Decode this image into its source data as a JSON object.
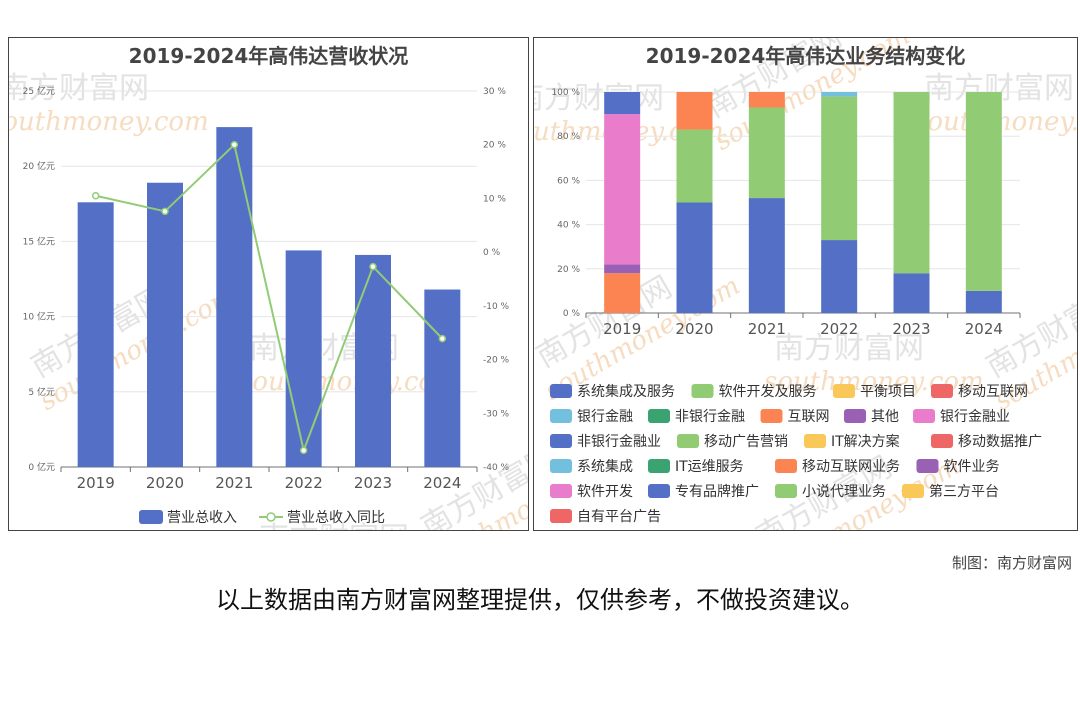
{
  "chart_data": [
    {
      "type": "bar+line",
      "title": "2019-2024年高伟达营收状况",
      "categories": [
        "2019",
        "2020",
        "2021",
        "2022",
        "2023",
        "2024"
      ],
      "y_left": {
        "ticks": [
          "0 亿元",
          "5 亿元",
          "10 亿元",
          "15 亿元",
          "20 亿元",
          "25 亿元"
        ],
        "ylim": [
          0,
          25
        ]
      },
      "y_right": {
        "ticks": [
          "-40 %",
          "-30 %",
          "-20 %",
          "-10 %",
          "0 %",
          "10 %",
          "20 %",
          "30 %"
        ],
        "ylim": [
          -40,
          30
        ]
      },
      "series": [
        {
          "name": "营业总收入",
          "type": "bar",
          "color": "#5470c6",
          "values": [
            17.6,
            18.9,
            22.6,
            14.4,
            14.1,
            11.8
          ]
        },
        {
          "name": "营业总收入同比",
          "type": "line",
          "color": "#91cc75",
          "values": [
            10.5,
            7.6,
            20.0,
            -36.9,
            -2.7,
            -16.1
          ]
        }
      ]
    },
    {
      "type": "stacked-bar",
      "title": "2019-2024年高伟达业务结构变化",
      "categories": [
        "2019",
        "2020",
        "2021",
        "2022",
        "2023",
        "2024"
      ],
      "y_ticks": [
        "0 %",
        "20 %",
        "40 %",
        "60 %",
        "80 %",
        "100 %"
      ],
      "ylim": [
        0,
        100
      ],
      "legend": [
        {
          "name": "系统集成及服务",
          "color": "#5470c6"
        },
        {
          "name": "软件开发及服务",
          "color": "#91cc75"
        },
        {
          "name": "平衡项目",
          "color": "#fac858"
        },
        {
          "name": "移动互联网",
          "color": "#ee6666"
        },
        {
          "name": "银行金融",
          "color": "#73c0de"
        },
        {
          "name": "非银行金融",
          "color": "#3ba272"
        },
        {
          "name": "互联网",
          "color": "#fc8452"
        },
        {
          "name": "其他",
          "color": "#9a60b4"
        },
        {
          "name": "银行金融业",
          "color": "#ea7ccc"
        },
        {
          "name": "非银行金融业",
          "color": "#5470c6"
        },
        {
          "name": "移动广告营销",
          "color": "#91cc75"
        },
        {
          "name": "IT解决方案",
          "color": "#fac858"
        },
        {
          "name": "移动数据推广",
          "color": "#ee6666"
        },
        {
          "name": "系统集成",
          "color": "#73c0de"
        },
        {
          "name": "IT运维服务",
          "color": "#3ba272"
        },
        {
          "name": "移动互联网业务",
          "color": "#fc8452"
        },
        {
          "name": "软件业务",
          "color": "#9a60b4"
        },
        {
          "name": "软件开发",
          "color": "#ea7ccc"
        },
        {
          "name": "专有品牌推广",
          "color": "#5470c6"
        },
        {
          "name": "小说代理业务",
          "color": "#91cc75"
        },
        {
          "name": "第三方平台",
          "color": "#fac858"
        },
        {
          "name": "自有平台广告",
          "color": "#ee6666"
        }
      ],
      "stacks": [
        [
          {
            "name": "互联网",
            "color": "#fc8452",
            "value": 18
          },
          {
            "name": "其他",
            "color": "#9a60b4",
            "value": 4
          },
          {
            "name": "银行金融业",
            "color": "#ea7ccc",
            "value": 68
          },
          {
            "name": "非银行金融业",
            "color": "#5470c6",
            "value": 10
          }
        ],
        [
          {
            "name": "系统集成及服务",
            "color": "#5470c6",
            "value": 50
          },
          {
            "name": "软件开发及服务",
            "color": "#91cc75",
            "value": 33
          },
          {
            "name": "互联网",
            "color": "#fc8452",
            "value": 17
          }
        ],
        [
          {
            "name": "系统集成及服务",
            "color": "#5470c6",
            "value": 52
          },
          {
            "name": "软件开发及服务",
            "color": "#91cc75",
            "value": 41
          },
          {
            "name": "互联网",
            "color": "#fc8452",
            "value": 7
          }
        ],
        [
          {
            "name": "系统集成及服务",
            "color": "#5470c6",
            "value": 33
          },
          {
            "name": "软件开发及服务",
            "color": "#91cc75",
            "value": 65
          },
          {
            "name": "银行金融",
            "color": "#73c0de",
            "value": 2
          }
        ],
        [
          {
            "name": "系统集成及服务",
            "color": "#5470c6",
            "value": 18
          },
          {
            "name": "软件开发及服务",
            "color": "#91cc75",
            "value": 82
          }
        ],
        [
          {
            "name": "系统集成及服务",
            "color": "#5470c6",
            "value": 10
          },
          {
            "name": "软件开发及服务",
            "color": "#91cc75",
            "value": 90
          }
        ]
      ]
    }
  ],
  "watermark": {
    "brand": "南方财富网",
    "latin": "southmoney.com"
  },
  "credit": "制图：南方财富网",
  "footer_note": "以上数据由南方财富网整理提供，仅供参考，不做投资建议。"
}
